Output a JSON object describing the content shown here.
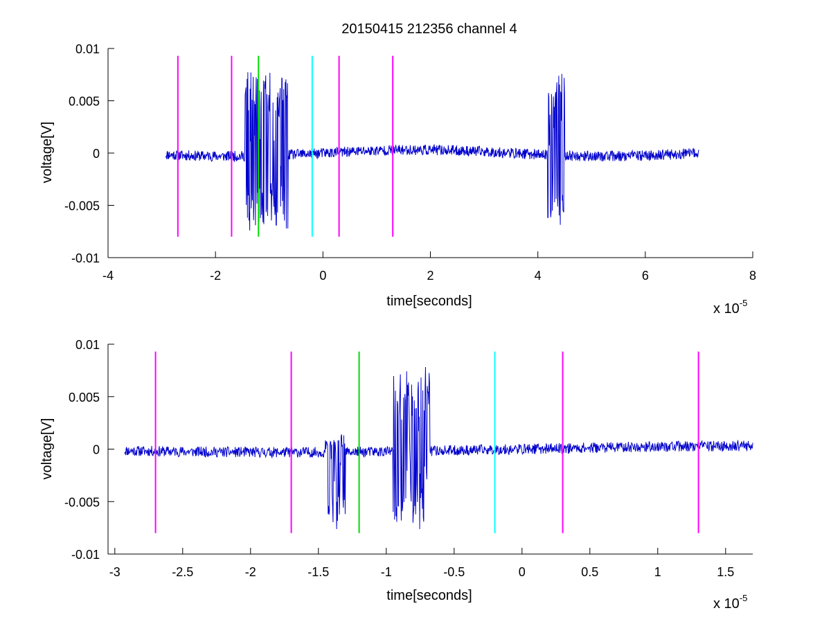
{
  "chart_data": [
    {
      "type": "line",
      "title": "20150415 212356 channel 4",
      "xlabel": "time[seconds]",
      "ylabel": "voltage[V]",
      "x_multiplier": {
        "base": "x 10",
        "exponent": "-5"
      },
      "xlim": [
        -4,
        8
      ],
      "ylim": [
        -0.01,
        0.01
      ],
      "xticks": [
        -4,
        -2,
        0,
        2,
        4,
        6,
        8
      ],
      "xtick_labels": [
        "-4",
        "-2",
        "0",
        "2",
        "4",
        "6",
        "8"
      ],
      "yticks": [
        -0.01,
        -0.005,
        0,
        0.005,
        0.01
      ],
      "ytick_labels": [
        "-0.01",
        "-0.005",
        "0",
        "0.005",
        "0.01"
      ],
      "grid": false,
      "signal": {
        "color": "#0000cc",
        "x_range": [
          -2.93,
          7.0
        ],
        "bursts": [
          {
            "x": [
              -1.45,
              -0.65
            ],
            "amp_max": 0.0078,
            "amp_min": -0.0073
          },
          {
            "x": [
              4.18,
              4.5
            ],
            "amp_max": 0.0083,
            "amp_min": -0.0067
          }
        ],
        "noise": 0.0005
      },
      "markers": [
        {
          "x": -2.7,
          "color": "#ff00ff",
          "y": [
            -0.008,
            0.0093
          ]
        },
        {
          "x": -1.7,
          "color": "#ff00ff",
          "y": [
            -0.008,
            0.0093
          ]
        },
        {
          "x": -1.2,
          "color": "#00dd00",
          "y": [
            -0.008,
            0.0093
          ]
        },
        {
          "x": -0.2,
          "color": "#00ffff",
          "y": [
            -0.008,
            0.0093
          ]
        },
        {
          "x": 0.3,
          "color": "#ff00ff",
          "y": [
            -0.008,
            0.0093
          ]
        },
        {
          "x": 1.3,
          "color": "#ff00ff",
          "y": [
            -0.008,
            0.0093
          ]
        }
      ]
    },
    {
      "type": "line",
      "title": "",
      "xlabel": "time[seconds]",
      "ylabel": "voltage[V]",
      "x_multiplier": {
        "base": "x 10",
        "exponent": "-5"
      },
      "xlim": [
        -3.05,
        1.7
      ],
      "ylim": [
        -0.01,
        0.01
      ],
      "xticks": [
        -3,
        -2.5,
        -2,
        -1.5,
        -1,
        -0.5,
        0,
        0.5,
        1,
        1.5
      ],
      "xtick_labels": [
        "-3",
        "-2.5",
        "-2",
        "-1.5",
        "-1",
        "-0.5",
        "0",
        "0.5",
        "1",
        "1.5"
      ],
      "yticks": [
        -0.01,
        -0.005,
        0,
        0.005,
        0.01
      ],
      "ytick_labels": [
        "-0.01",
        "-0.005",
        "0",
        "0.005",
        "0.01"
      ],
      "grid": false,
      "signal": {
        "color": "#0000cc",
        "x_range": [
          -2.93,
          1.7
        ],
        "bursts": [
          {
            "x": [
              -1.45,
              -1.3
            ],
            "amp_max": 0.0012,
            "amp_min": -0.0072
          },
          {
            "x": [
              -0.95,
              -0.68
            ],
            "amp_max": 0.0078,
            "amp_min": -0.0073
          }
        ],
        "noise": 0.0005
      },
      "markers": [
        {
          "x": -2.7,
          "color": "#ff00ff",
          "y": [
            -0.008,
            0.0093
          ]
        },
        {
          "x": -1.7,
          "color": "#ff00ff",
          "y": [
            -0.008,
            0.0093
          ]
        },
        {
          "x": -1.2,
          "color": "#00dd00",
          "y": [
            -0.008,
            0.0093
          ]
        },
        {
          "x": -0.2,
          "color": "#00ffff",
          "y": [
            -0.008,
            0.0093
          ]
        },
        {
          "x": 0.3,
          "color": "#ff00ff",
          "y": [
            -0.008,
            0.0093
          ]
        },
        {
          "x": 1.3,
          "color": "#ff00ff",
          "y": [
            -0.008,
            0.0093
          ]
        }
      ]
    }
  ]
}
